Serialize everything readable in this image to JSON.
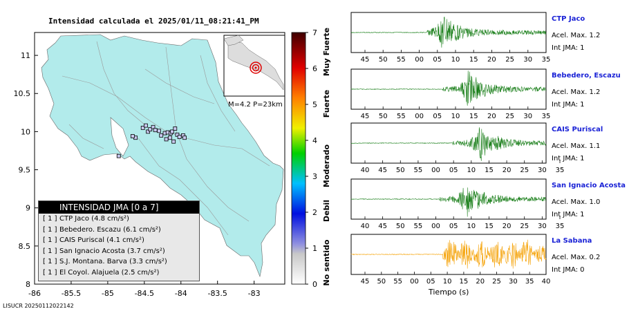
{
  "map": {
    "title": "Intensidad calculada el 2025/01/11_08:21:41_PM",
    "lon_ticks": [
      "-86",
      "-85.5",
      "-85",
      "-84.5",
      "-84",
      "-83.5",
      "-83"
    ],
    "lat_ticks": [
      "8",
      "8.5",
      "9",
      "9.5",
      "10",
      "10.5",
      "11"
    ],
    "inset_label": "M=4.2 P=23km",
    "epicenter": {
      "lon": -84.5,
      "lat": 9.85
    },
    "stations": [
      {
        "lon": -84.52,
        "lat": 10.05
      },
      {
        "lon": -84.48,
        "lat": 10.08
      },
      {
        "lon": -84.45,
        "lat": 10.0
      },
      {
        "lon": -84.42,
        "lat": 10.03
      },
      {
        "lon": -84.38,
        "lat": 10.06
      },
      {
        "lon": -84.35,
        "lat": 10.02
      },
      {
        "lon": -84.3,
        "lat": 10.01
      },
      {
        "lon": -84.27,
        "lat": 9.95
      },
      {
        "lon": -84.22,
        "lat": 9.98
      },
      {
        "lon": -84.18,
        "lat": 9.99
      },
      {
        "lon": -84.14,
        "lat": 9.98
      },
      {
        "lon": -84.12,
        "lat": 10.0
      },
      {
        "lon": -84.08,
        "lat": 10.04
      },
      {
        "lon": -84.05,
        "lat": 9.96
      },
      {
        "lon": -84.02,
        "lat": 9.93
      },
      {
        "lon": -83.97,
        "lat": 9.95
      },
      {
        "lon": -83.95,
        "lat": 9.92
      },
      {
        "lon": -84.1,
        "lat": 9.87
      },
      {
        "lon": -84.2,
        "lat": 9.9
      },
      {
        "lon": -84.62,
        "lat": 9.92
      },
      {
        "lon": -84.66,
        "lat": 9.94
      },
      {
        "lon": -84.85,
        "lat": 9.68
      },
      {
        "lon": -84.15,
        "lat": 9.92
      }
    ],
    "credit": "LISUCR 20250112022142"
  },
  "colorbar": {
    "ticks": [
      "0",
      "1",
      "2",
      "3",
      "4",
      "5",
      "6",
      "7"
    ],
    "labels": [
      "No sentido",
      "Debil",
      "Moderado",
      "Fuerte",
      "Muy Fuerte"
    ]
  },
  "legend": {
    "title": "INTENSIDAD JMA [0 a 7]",
    "rows": [
      {
        "level": "[ 1 ]",
        "text": "CTP Jaco (4.8 cm/s²)"
      },
      {
        "level": "[ 1 ]",
        "text": "Bebedero. Escazu (6.1 cm/s²)"
      },
      {
        "level": "[ 1 ]",
        "text": "CAIS Puriscal (4.1 cm/s²)"
      },
      {
        "level": "[ 1 ]",
        "text": "San Ignacio Acosta (3.7 cm/s²)"
      },
      {
        "level": "[ 1 ]",
        "text": "S.J. Montana. Barva (3.3 cm/s²)"
      },
      {
        "level": "[ 1 ]",
        "text": "El Coyol. Alajuela (2.5 cm/s²)"
      }
    ]
  },
  "chart_data": {
    "type": "line",
    "xlabel": "Tiempo (s)",
    "series": [
      {
        "name": "CTP Jaco",
        "acel": "Acel. Max. 1.2",
        "jma": "Int JMA: 1",
        "color": "#1a7f1a",
        "ticks": [
          "45",
          "50",
          "55",
          "00",
          "05",
          "10",
          "15",
          "20",
          "25",
          "30",
          "35"
        ],
        "onset": 0.39,
        "peak": 0.47,
        "amp": 1.0
      },
      {
        "name": "Bebedero, Escazu",
        "acel": "Acel. Max. 1.2",
        "jma": "Int JMA: 1",
        "color": "#1a7f1a",
        "ticks": [
          "45",
          "50",
          "55",
          "00",
          "05",
          "10",
          "15",
          "20",
          "25",
          "30",
          "35"
        ],
        "onset": 0.47,
        "peak": 0.6,
        "amp": 1.0
      },
      {
        "name": "CAIS Puriscal",
        "acel": "Acel. Max. 1.1",
        "jma": "Int JMA: 1",
        "color": "#1a7f1a",
        "ticks": [
          "40",
          "45",
          "50",
          "55",
          "00",
          "05",
          "10",
          "15",
          "20",
          "25",
          "30",
          "35"
        ],
        "onset": 0.52,
        "peak": 0.66,
        "amp": 1.0
      },
      {
        "name": "San Ignacio Acosta",
        "acel": "Acel. Max. 1.0",
        "jma": "Int JMA: 1",
        "color": "#1a7f1a",
        "ticks": [
          "40",
          "45",
          "50",
          "55",
          "00",
          "05",
          "10",
          "15",
          "20",
          "25",
          "30",
          "35"
        ],
        "onset": 0.45,
        "peak": 0.59,
        "amp": 1.0
      },
      {
        "name": "La Sabana",
        "acel": "Acel. Max. 0.2",
        "jma": "Int JMA: 0",
        "color": "#f5a000",
        "ticks": [
          "45",
          "50",
          "55",
          "00",
          "05",
          "10",
          "15",
          "20",
          "25",
          "30",
          "35",
          "40"
        ],
        "onset": 0.47,
        "peak": 0.7,
        "amp": 0.9
      }
    ]
  }
}
